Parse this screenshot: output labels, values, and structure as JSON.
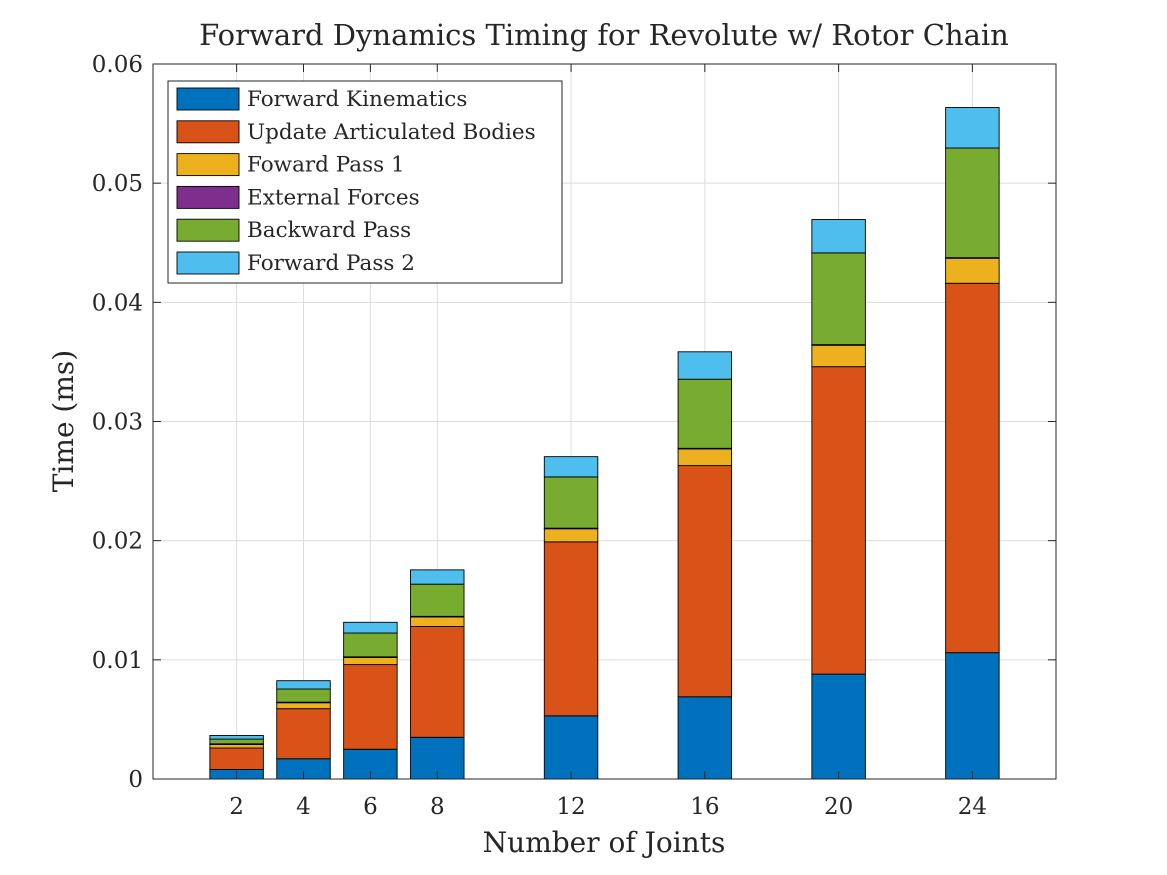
{
  "chart_data": {
    "type": "bar",
    "stacked": true,
    "title": "Forward Dynamics Timing for Revolute w/ Rotor Chain",
    "xlabel": "Number of Joints",
    "ylabel": "Time (ms)",
    "x": [
      2,
      4,
      6,
      8,
      12,
      16,
      20,
      24
    ],
    "xticks": [
      "2",
      "4",
      "6",
      "8",
      "12",
      "16",
      "20",
      "24"
    ],
    "xlim": [
      -0.5,
      26.5
    ],
    "ylim": [
      0,
      0.06
    ],
    "yticks": [
      "0",
      "0.01",
      "0.02",
      "0.03",
      "0.04",
      "0.05",
      "0.06"
    ],
    "grid": true,
    "legend_position": "top-left",
    "series": [
      {
        "name": "Forward Kinematics",
        "color": "#0072BD",
        "values": [
          0.0008,
          0.0017,
          0.0025,
          0.0035,
          0.0053,
          0.0069,
          0.0088,
          0.0106
        ]
      },
      {
        "name": "Update Articulated Bodies",
        "color": "#D95319",
        "values": [
          0.0018,
          0.0042,
          0.0071,
          0.0093,
          0.0146,
          0.0194,
          0.0258,
          0.031
        ]
      },
      {
        "name": "Foward Pass 1",
        "color": "#EDB120",
        "values": [
          0.0003,
          0.0005,
          0.0006,
          0.0008,
          0.0011,
          0.0014,
          0.0018,
          0.0021
        ]
      },
      {
        "name": "External Forces",
        "color": "#7E2F8E",
        "values": [
          5e-05,
          5e-05,
          5e-05,
          5e-05,
          5e-05,
          5e-05,
          5e-05,
          5e-05
        ]
      },
      {
        "name": "Backward Pass",
        "color": "#77AC30",
        "values": [
          0.0004,
          0.0011,
          0.002,
          0.0027,
          0.0043,
          0.0058,
          0.0077,
          0.0092
        ]
      },
      {
        "name": "Forward Pass 2",
        "color": "#4DBEEE",
        "values": [
          0.0003,
          0.0007,
          0.0009,
          0.0012,
          0.0017,
          0.0023,
          0.0028,
          0.0034
        ]
      }
    ]
  }
}
